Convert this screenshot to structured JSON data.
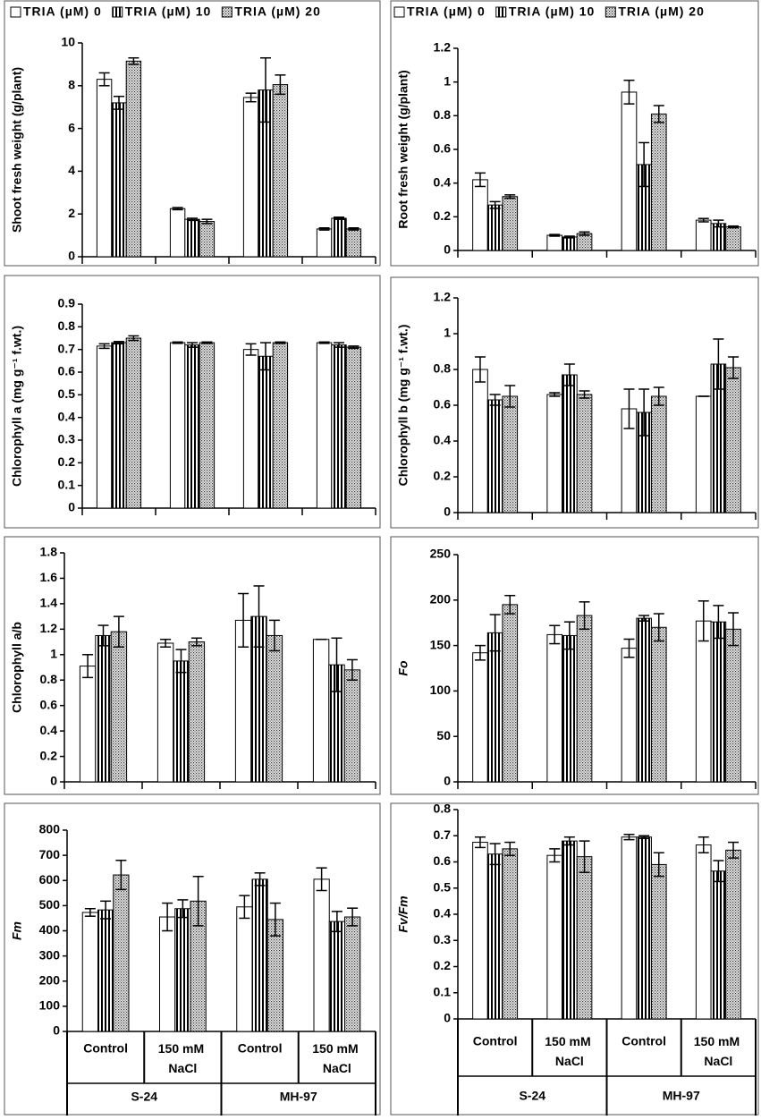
{
  "chart_data": [
    {
      "type": "bar",
      "ylabel": "Shoot fresh weight (g/plant)",
      "ylim": [
        0,
        10
      ],
      "yticks": [
        0,
        2,
        4,
        6,
        8,
        10
      ],
      "legend": "top",
      "categories": [
        null,
        null,
        null,
        null
      ],
      "series": [
        {
          "name": "TRIA (µM) 0",
          "color": "#ffffff",
          "pattern": "none",
          "values": [
            8.3,
            2.25,
            7.45,
            1.3
          ],
          "errors": [
            0.3,
            0.05,
            0.2,
            0.05
          ]
        },
        {
          "name": "TRIA (µM) 10",
          "color": "#000000",
          "pattern": "stripes",
          "values": [
            7.2,
            1.75,
            7.8,
            1.8
          ],
          "errors": [
            0.3,
            0.05,
            1.5,
            0.05
          ]
        },
        {
          "name": "TRIA (µM) 20",
          "color": "#808080",
          "pattern": "dots",
          "values": [
            9.15,
            1.65,
            8.05,
            1.3
          ],
          "errors": [
            0.15,
            0.1,
            0.45,
            0.05
          ]
        }
      ]
    },
    {
      "type": "bar",
      "ylabel": "Root fresh weight (g/plant)",
      "ylim": [
        0,
        1.2
      ],
      "yticks": [
        0,
        0.2,
        0.4,
        0.6,
        0.8,
        1,
        1.2
      ],
      "legend": "top",
      "categories": [
        null,
        null,
        null,
        null
      ],
      "series": [
        {
          "name": "TRIA (µM) 0",
          "color": "#ffffff",
          "pattern": "none",
          "values": [
            0.42,
            0.09,
            0.94,
            0.18
          ],
          "errors": [
            0.04,
            0.005,
            0.07,
            0.01
          ]
        },
        {
          "name": "TRIA (µM) 10",
          "color": "#000000",
          "pattern": "stripes",
          "values": [
            0.27,
            0.08,
            0.51,
            0.16
          ],
          "errors": [
            0.02,
            0.005,
            0.13,
            0.02
          ]
        },
        {
          "name": "TRIA (µM) 20",
          "color": "#808080",
          "pattern": "dots",
          "values": [
            0.32,
            0.1,
            0.81,
            0.14
          ],
          "errors": [
            0.01,
            0.01,
            0.05,
            0.005
          ]
        }
      ]
    },
    {
      "type": "bar",
      "ylabel": "Chlorophyll a (mg g⁻¹ f.wt.)",
      "ylim": [
        0,
        0.9
      ],
      "yticks": [
        0,
        0.1,
        0.2,
        0.3,
        0.4,
        0.5,
        0.6,
        0.7,
        0.8,
        0.9
      ],
      "categories": [
        null,
        null,
        null,
        null
      ],
      "series": [
        {
          "name": "TRIA (µM) 0",
          "color": "#ffffff",
          "pattern": "none",
          "values": [
            0.715,
            0.73,
            0.7,
            0.73
          ],
          "errors": [
            0.01,
            0.003,
            0.025,
            0.003
          ]
        },
        {
          "name": "TRIA (µM) 10",
          "color": "#000000",
          "pattern": "stripes",
          "values": [
            0.73,
            0.72,
            0.67,
            0.72
          ],
          "errors": [
            0.005,
            0.01,
            0.06,
            0.01
          ]
        },
        {
          "name": "TRIA (µM) 20",
          "color": "#808080",
          "pattern": "dots",
          "values": [
            0.75,
            0.73,
            0.73,
            0.71
          ],
          "errors": [
            0.01,
            0.003,
            0.003,
            0.005
          ]
        }
      ]
    },
    {
      "type": "bar",
      "ylabel": "Chlorophyll b (mg g⁻¹ f.wt.)",
      "ylim": [
        0,
        1.2
      ],
      "yticks": [
        0,
        0.2,
        0.4,
        0.6,
        0.8,
        1,
        1.2
      ],
      "categories": [
        null,
        null,
        null,
        null
      ],
      "series": [
        {
          "name": "TRIA (µM) 0",
          "color": "#ffffff",
          "pattern": "none",
          "values": [
            0.8,
            0.66,
            0.58,
            0.65
          ],
          "errors": [
            0.07,
            0.01,
            0.11,
            0
          ]
        },
        {
          "name": "TRIA (µM) 10",
          "color": "#000000",
          "pattern": "stripes",
          "values": [
            0.63,
            0.77,
            0.56,
            0.83
          ],
          "errors": [
            0.03,
            0.06,
            0.13,
            0.14
          ]
        },
        {
          "name": "TRIA (µM) 20",
          "color": "#808080",
          "pattern": "dots",
          "values": [
            0.65,
            0.66,
            0.65,
            0.81
          ],
          "errors": [
            0.06,
            0.02,
            0.05,
            0.06
          ]
        }
      ]
    },
    {
      "type": "bar",
      "ylabel": "Chlorophyll a/b",
      "ylim": [
        0,
        1.8
      ],
      "yticks": [
        0,
        0.2,
        0.4,
        0.6,
        0.8,
        1,
        1.2,
        1.4,
        1.6,
        1.8
      ],
      "categories": [
        null,
        null,
        null,
        null
      ],
      "series": [
        {
          "name": "TRIA (µM) 0",
          "color": "#ffffff",
          "pattern": "none",
          "values": [
            0.91,
            1.09,
            1.27,
            1.12
          ],
          "errors": [
            0.09,
            0.03,
            0.21,
            0
          ]
        },
        {
          "name": "TRIA (µM) 10",
          "color": "#000000",
          "pattern": "stripes",
          "values": [
            1.15,
            0.95,
            1.3,
            0.92
          ],
          "errors": [
            0.08,
            0.09,
            0.24,
            0.21
          ]
        },
        {
          "name": "TRIA (µM) 20",
          "color": "#808080",
          "pattern": "dots",
          "values": [
            1.18,
            1.1,
            1.15,
            0.88
          ],
          "errors": [
            0.12,
            0.03,
            0.12,
            0.08
          ]
        }
      ]
    },
    {
      "type": "bar",
      "ylabel": "Fo",
      "ylabel_style": "italic",
      "ylim": [
        0,
        250
      ],
      "yticks": [
        0,
        50,
        100,
        150,
        200,
        250
      ],
      "categories": [
        null,
        null,
        null,
        null
      ],
      "series": [
        {
          "name": "TRIA (µM) 0",
          "color": "#ffffff",
          "pattern": "none",
          "values": [
            142,
            162,
            147,
            177
          ],
          "errors": [
            8,
            10,
            10,
            22
          ]
        },
        {
          "name": "TRIA (µM) 10",
          "color": "#000000",
          "pattern": "stripes",
          "values": [
            164,
            161,
            180,
            176
          ],
          "errors": [
            20,
            15,
            3,
            18
          ]
        },
        {
          "name": "TRIA (µM) 20",
          "color": "#808080",
          "pattern": "dots",
          "values": [
            195,
            183,
            170,
            168
          ],
          "errors": [
            10,
            15,
            15,
            18
          ]
        }
      ]
    },
    {
      "type": "bar",
      "ylabel": "Fm",
      "ylabel_style": "italic",
      "ylim": [
        0,
        800
      ],
      "yticks": [
        0,
        100,
        200,
        300,
        400,
        500,
        600,
        700,
        800
      ],
      "categories": [
        "Control",
        "150 mM NaCl",
        "Control",
        "150 mM NaCl"
      ],
      "groups": [
        "S-24",
        "MH-97"
      ],
      "series": [
        {
          "name": "TRIA (µM) 0",
          "color": "#ffffff",
          "pattern": "none",
          "values": [
            473,
            455,
            495,
            605
          ],
          "errors": [
            15,
            55,
            45,
            45
          ]
        },
        {
          "name": "TRIA (µM) 10",
          "color": "#000000",
          "pattern": "stripes",
          "values": [
            483,
            488,
            605,
            437
          ],
          "errors": [
            35,
            35,
            25,
            40
          ]
        },
        {
          "name": "TRIA (µM) 20",
          "color": "#808080",
          "pattern": "dots",
          "values": [
            622,
            518,
            445,
            455
          ],
          "errors": [
            58,
            98,
            65,
            35
          ]
        }
      ]
    },
    {
      "type": "bar",
      "ylabel": "Fv/Fm",
      "ylabel_style": "italic",
      "ylim": [
        0,
        0.8
      ],
      "yticks": [
        0,
        0.1,
        0.2,
        0.3,
        0.4,
        0.5,
        0.6,
        0.7,
        0.8
      ],
      "categories": [
        "Control",
        "150 mM NaCl",
        "Control",
        "150 mM NaCl"
      ],
      "groups": [
        "S-24",
        "MH-97"
      ],
      "series": [
        {
          "name": "TRIA (µM) 0",
          "color": "#ffffff",
          "pattern": "none",
          "values": [
            0.675,
            0.625,
            0.695,
            0.665
          ],
          "errors": [
            0.02,
            0.025,
            0.01,
            0.03
          ]
        },
        {
          "name": "TRIA (µM) 10",
          "color": "#000000",
          "pattern": "stripes",
          "values": [
            0.63,
            0.68,
            0.695,
            0.565
          ],
          "errors": [
            0.04,
            0.015,
            0.005,
            0.04
          ]
        },
        {
          "name": "TRIA (µM) 20",
          "color": "#808080",
          "pattern": "dots",
          "values": [
            0.65,
            0.62,
            0.59,
            0.645
          ],
          "errors": [
            0.025,
            0.06,
            0.045,
            0.03
          ]
        }
      ]
    }
  ]
}
